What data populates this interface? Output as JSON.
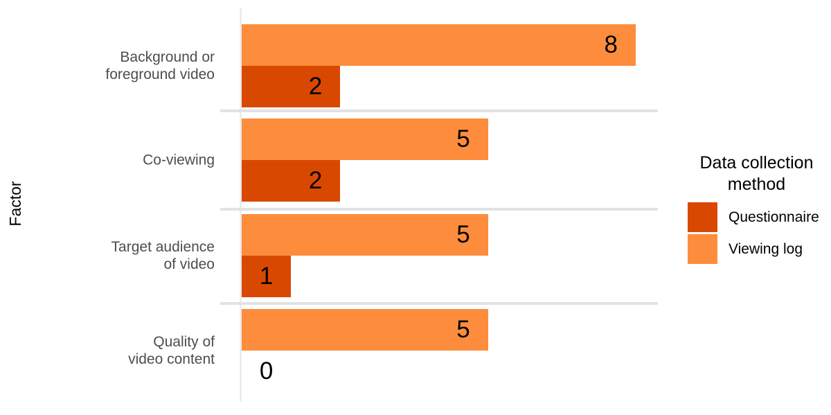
{
  "chart_data": {
    "type": "bar",
    "orientation": "horizontal",
    "title": "",
    "xlabel": "",
    "ylabel": "Factor",
    "categories": [
      "Background or foreground video",
      "Co-viewing",
      "Target audience of video",
      "Quality of video content"
    ],
    "series": [
      {
        "name": "Viewing log",
        "color": "#FD8D3C",
        "values": [
          8,
          5,
          5,
          5
        ]
      },
      {
        "name": "Questionnaire",
        "color": "#D94801",
        "values": [
          2,
          2,
          1,
          0
        ]
      }
    ],
    "xlim": [
      0,
      8.5
    ],
    "x_axis_labels_visible": false,
    "grid": "light gray separator line between each category; light gray vertical line at x=0",
    "value_labels": true,
    "legend_position": "right",
    "legend_title": "Data collection method",
    "gridline_color": "#e2e2e2",
    "background_color": "#ffffff",
    "axis_text_color": "#4d4d4d",
    "value_label_color": "#000000"
  },
  "labels": {
    "y_axis_title": "Factor",
    "categories_display": [
      "Background or\nforeground video",
      "Co-viewing",
      "Target audience\nof video",
      "Quality of\nvideo content"
    ]
  },
  "legend": {
    "title_display": "Data collection\nmethod",
    "items": [
      {
        "label": "Questionnaire",
        "color": "#D94801"
      },
      {
        "label": "Viewing log",
        "color": "#FD8D3C"
      }
    ]
  }
}
